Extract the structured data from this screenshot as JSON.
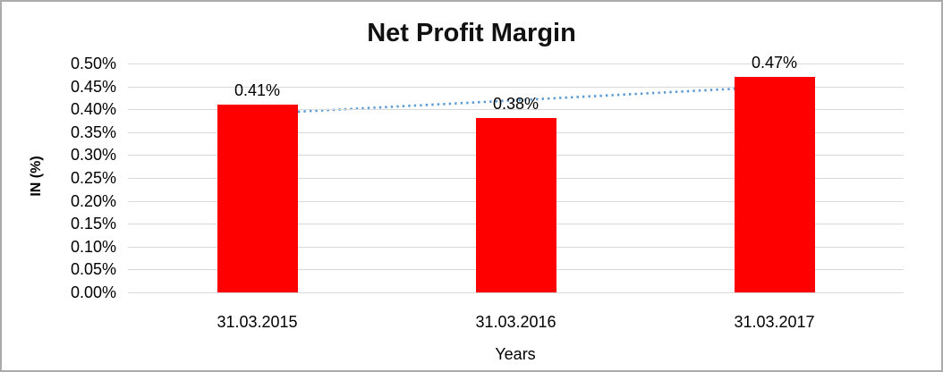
{
  "window": {
    "background_color": "#FFFFFF",
    "border_color": "#ABABAB"
  },
  "chart_data": {
    "type": "bar",
    "title": "Net Profit Margin",
    "categories": [
      "31.03.2015",
      "31.03.2016",
      "31.03.2017"
    ],
    "values": [
      0.41,
      0.38,
      0.47
    ],
    "data_labels": [
      "0.41%",
      "0.38%",
      "0.47%"
    ],
    "xlabel": "Years",
    "ylabel": "IN (%)",
    "y_axis": {
      "min": 0,
      "max": 0.5,
      "tick_step": 0.05,
      "unit": "%",
      "tick_labels": [
        "0.50%",
        "0.45%",
        "0.40%",
        "0.35%",
        "0.30%",
        "0.25%",
        "0.20%",
        "0.15%",
        "0.10%",
        "0.05%",
        "0.00%"
      ]
    },
    "bar_color": "#FF0000",
    "gridline_color": "#D9D9D9",
    "grid": "horizontal",
    "legend": "none",
    "trendline": {
      "type": "linear",
      "style": "dotted",
      "color": "#5B9BD5",
      "start_value": 0.39,
      "end_value": 0.45
    },
    "text_color": "#000000"
  }
}
